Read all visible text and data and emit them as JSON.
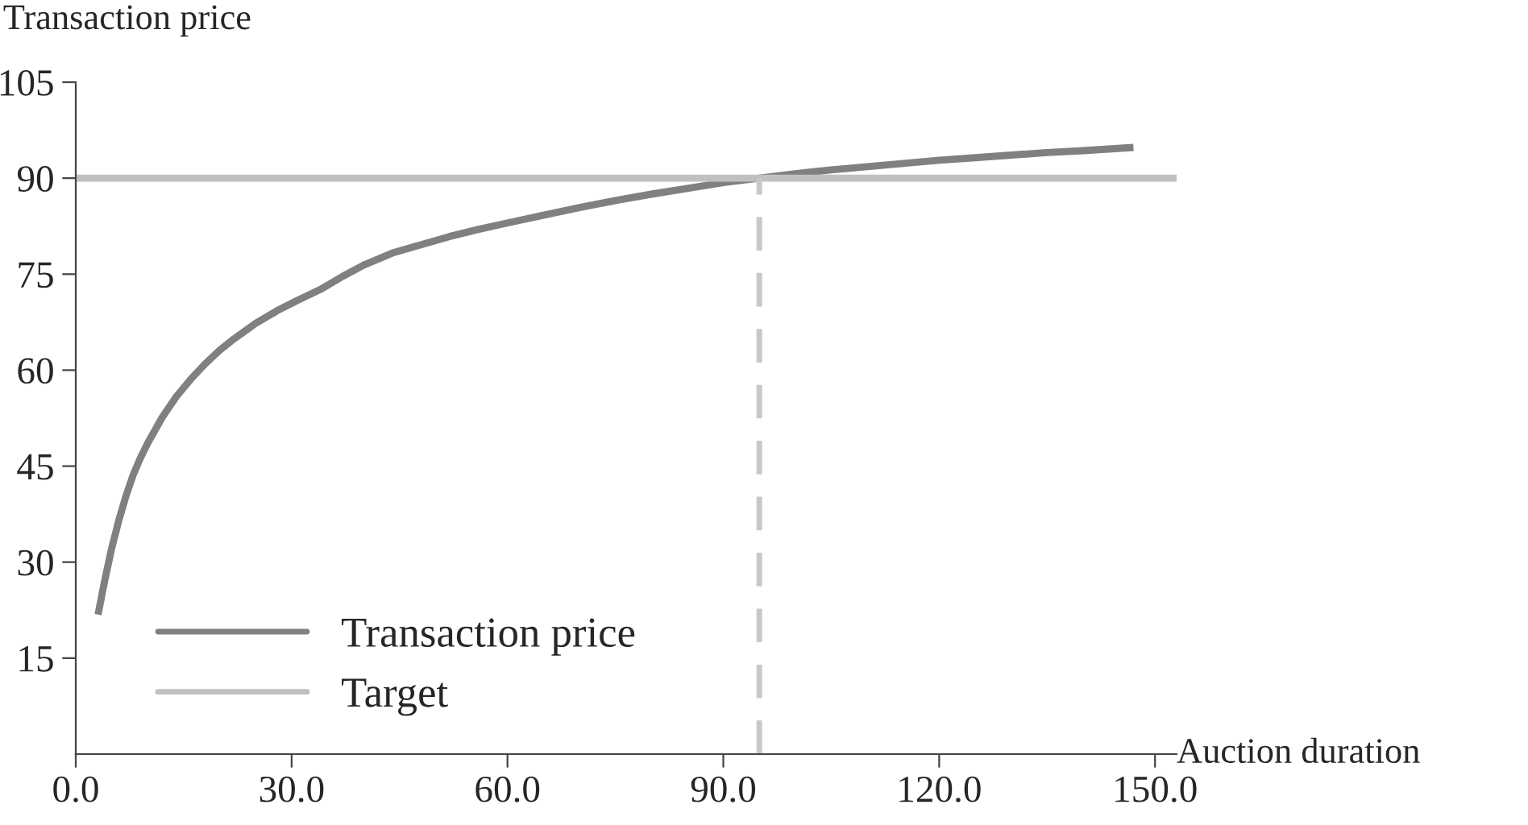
{
  "chart_data": {
    "type": "line",
    "xlabel": "Auction duration",
    "ylabel": "Transaction price",
    "series": [
      {
        "name": "Transaction price",
        "color": "#808080",
        "x": [
          3.1,
          4,
          5,
          6,
          7,
          8,
          9,
          10,
          12,
          14,
          16,
          18,
          20,
          22,
          25,
          28,
          31,
          34,
          37,
          40,
          44,
          48,
          52,
          56,
          60,
          65,
          70,
          75,
          80,
          85,
          90,
          95,
          100,
          105,
          110,
          115,
          120,
          125,
          130,
          135,
          140,
          147
        ],
        "values": [
          21.8,
          27,
          32.2,
          36.6,
          40.4,
          43.7,
          46.3,
          48.6,
          52.6,
          55.9,
          58.6,
          61.0,
          63.1,
          64.9,
          67.3,
          69.3,
          71.0,
          72.6,
          74.6,
          76.4,
          78.3,
          79.6,
          80.9,
          82.0,
          83.0,
          84.2,
          85.4,
          86.5,
          87.5,
          88.4,
          89.3,
          90,
          90.7,
          91.3,
          91.8,
          92.3,
          92.8,
          93.2,
          93.6,
          94.0,
          94.3,
          94.8
        ]
      },
      {
        "name": "Target",
        "color": "#c0c0c0",
        "x": [
          0,
          153
        ],
        "values": [
          90,
          90
        ]
      }
    ],
    "ref_lines": [
      {
        "axis": "x",
        "value": 95,
        "color": "#c8c8c8",
        "line_style": "dashed"
      }
    ],
    "xlim": [
      0,
      153
    ],
    "ylim": [
      0,
      105
    ],
    "xticks": [
      {
        "value": 0,
        "label": "0.0"
      },
      {
        "value": 30,
        "label": "30.0"
      },
      {
        "value": 60,
        "label": "60.0"
      },
      {
        "value": 90,
        "label": "90.0"
      },
      {
        "value": 120,
        "label": "120.0"
      },
      {
        "value": 150,
        "label": "150.0"
      }
    ],
    "yticks": [
      15,
      30,
      45,
      60,
      75,
      90,
      105
    ],
    "grid": false,
    "legend": "bottom left",
    "line_style": "solid",
    "marker": "none"
  }
}
